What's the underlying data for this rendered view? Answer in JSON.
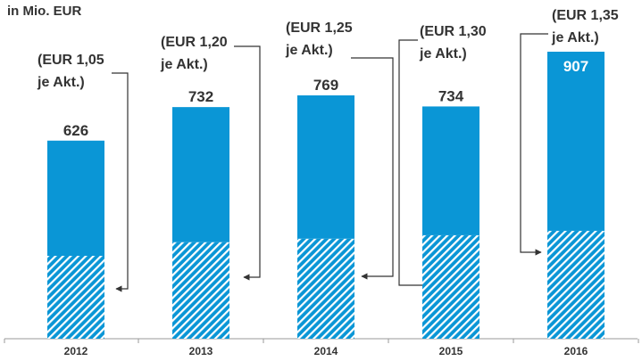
{
  "chart_data": {
    "type": "stacked_bar",
    "title": "in Mio. EUR",
    "categories": [
      "2012",
      "2013",
      "2014",
      "2015",
      "2016"
    ],
    "series": [
      {
        "color": "hatch",
        "values": [
          262,
          305,
          316,
          327,
          341
        ]
      },
      {
        "color": "#0a96d6",
        "values": [
          364,
          427,
          453,
          407,
          566
        ]
      }
    ],
    "totals": [
      626,
      732,
      769,
      734,
      907
    ],
    "annotations": [
      [
        "(EUR 1,05",
        "je Akt.)"
      ],
      [
        "(EUR 1,20",
        "je Akt.)"
      ],
      [
        "(EUR 1,25",
        "je Akt.)"
      ],
      [
        "(EUR 1,30",
        "je Akt.)"
      ],
      [
        "(EUR 1,35",
        "je Akt.)"
      ]
    ],
    "ylim": [
      0,
      1000
    ]
  }
}
